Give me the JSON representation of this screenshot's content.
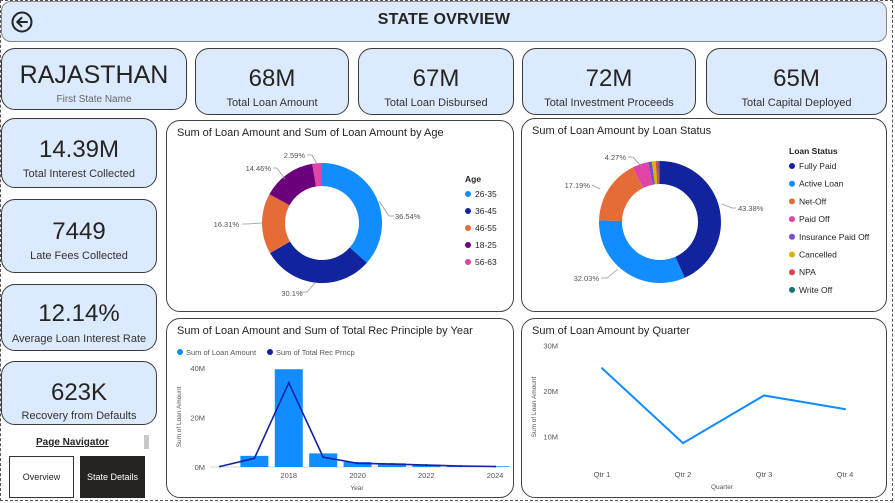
{
  "header": {
    "title": "STATE OVRVIEW"
  },
  "state_card": {
    "value": "RAJASTHAN",
    "label": "First State Name"
  },
  "kpis": [
    {
      "value": "68M",
      "label": "Total Loan Amount"
    },
    {
      "value": "67M",
      "label": "Total Loan Disbursed"
    },
    {
      "value": "72M",
      "label": "Total Investment Proceeds"
    },
    {
      "value": "65M",
      "label": "Total Capital Deployed"
    }
  ],
  "side_kpis": [
    {
      "value": "14.39M",
      "label": "Total Interest Collected"
    },
    {
      "value": "7449",
      "label": "Late Fees Collected"
    },
    {
      "value": "12.14%",
      "label": "Average Loan Interest Rate"
    },
    {
      "value": "623K",
      "label": "Recovery from Defaults"
    }
  ],
  "navigator": {
    "title": "Page Navigator",
    "overview_label": "Overview",
    "details_label": "State Details"
  },
  "colors": {
    "blue": "#118dff",
    "navy": "#12239e",
    "orange": "#e66c37",
    "purple": "#6b007b",
    "pink": "#e044a7",
    "violet": "#744ec2",
    "gold": "#d9b300",
    "red": "#d64550",
    "teal": "#197278",
    "header_bg": "#dbeafd"
  },
  "chart_data": [
    {
      "type": "pie",
      "title": "Sum of Loan Amount and Sum of Loan Amount by Age",
      "legend_title": "Age",
      "categories": [
        "26-35",
        "36-45",
        "46-55",
        "18-25",
        "56-63"
      ],
      "values": [
        36.54,
        30.1,
        16.31,
        14.46,
        2.59
      ],
      "labels": [
        "36.54%",
        "30.1%",
        "16.31%",
        "14.46%",
        "2.59%"
      ],
      "colors": [
        "#118dff",
        "#12239e",
        "#e66c37",
        "#6b007b",
        "#e044a7"
      ],
      "donut": true
    },
    {
      "type": "pie",
      "title": "Sum of Loan Amount by Loan Status",
      "legend_title": "Loan Status",
      "categories": [
        "Fully Paid",
        "Active Loan",
        "Net-Off",
        "Paid Off",
        "Insurance Paid Off",
        "Cancelled",
        "NPA",
        "Write Off"
      ],
      "values": [
        43.38,
        32.03,
        17.19,
        4.27,
        1.0,
        1.0,
        0.7,
        0.43
      ],
      "labels": [
        "43.38%",
        "32.03%",
        "17.19%",
        "4.27%",
        "",
        "",
        "",
        ""
      ],
      "colors": [
        "#12239e",
        "#118dff",
        "#e66c37",
        "#e044a7",
        "#744ec2",
        "#d9b300",
        "#d64550",
        "#197278"
      ],
      "donut": true
    },
    {
      "type": "bar",
      "title": "Sum of Loan Amount and Sum of Total Rec Principle by Year",
      "legend": [
        "Sum of Loan Amount",
        "Sum of Total Rec Prncp"
      ],
      "xlabel": "Year",
      "ylabel": "Sum of Loan Amount",
      "x": [
        2016,
        2017,
        2018,
        2019,
        2020,
        2021,
        2022,
        2023,
        2024
      ],
      "x_ticks": [
        "2018",
        "2020",
        "2022",
        "2024"
      ],
      "y_ticks": [
        "0M",
        "20M",
        "40M"
      ],
      "ylim": [
        0,
        40
      ],
      "series": [
        {
          "name": "Sum of Loan Amount",
          "values": [
            0,
            4.5,
            39.5,
            5.5,
            2,
            1.5,
            1,
            0.5,
            0.3
          ]
        },
        {
          "name": "Sum of Total Rec Prncp",
          "values": [
            0.2,
            3.5,
            34,
            4,
            1.5,
            1.2,
            0.8,
            0.4,
            0.2
          ]
        }
      ]
    },
    {
      "type": "line",
      "title": "Sum of Loan Amount by Quarter",
      "xlabel": "Quarter",
      "ylabel": "Sum of Loan Amount",
      "categories": [
        "Qtr 1",
        "Qtr 2",
        "Qtr 3",
        "Qtr 4"
      ],
      "values": [
        25,
        8.5,
        19,
        16
      ],
      "y_ticks": [
        "10M",
        "20M",
        "30M"
      ],
      "ylim": [
        5,
        31
      ]
    }
  ]
}
